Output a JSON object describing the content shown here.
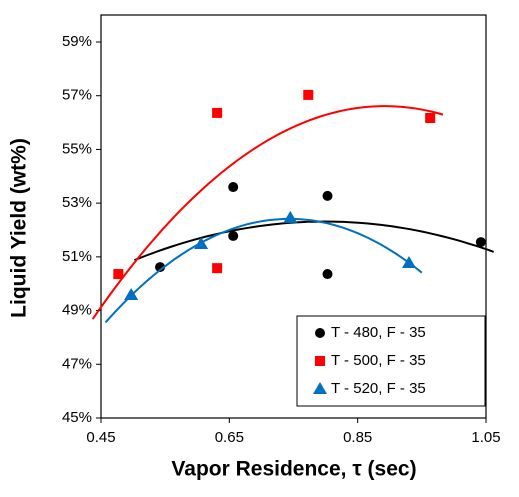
{
  "chart_data": {
    "type": "scatter",
    "xlabel": "Vapor Residence, τ (sec)",
    "ylabel": "Liquid Yield (wt%)",
    "xlim": [
      0.45,
      1.05
    ],
    "xticks": [
      0.45,
      0.65,
      0.85,
      1.05
    ],
    "ylim": [
      45,
      59
    ],
    "yticks": [
      {
        "value": 45,
        "label": "45%"
      },
      {
        "value": 47,
        "label": "47%"
      },
      {
        "value": 49,
        "label": "49%"
      },
      {
        "value": 51,
        "label": "51%"
      },
      {
        "value": 53,
        "label": "53%"
      },
      {
        "value": 55,
        "label": "55%"
      },
      {
        "value": 57,
        "label": "57%"
      },
      {
        "value": 59,
        "label": "59%"
      }
    ],
    "grid": false,
    "legend": "lower right",
    "trendline": "poly2",
    "series": [
      {
        "name": "T - 480, F - 35",
        "color": "#000000",
        "marker": "circle",
        "x": [
          0.542,
          0.656,
          0.656,
          0.803,
          0.803,
          1.042
        ],
        "values": [
          50.62,
          53.6,
          51.78,
          53.27,
          50.36,
          51.55
        ]
      },
      {
        "name": "T - 500, F - 35",
        "color": "#ff0000",
        "marker": "square",
        "x": [
          0.477,
          0.631,
          0.631,
          0.773,
          0.963
        ],
        "values": [
          50.36,
          56.36,
          50.58,
          57.03,
          56.17
        ]
      },
      {
        "name": "T - 520, F - 35",
        "color": "#0070c0",
        "marker": "triangle",
        "x": [
          0.497,
          0.606,
          0.745,
          0.93
        ],
        "values": [
          49.58,
          51.48,
          52.45,
          50.77
        ]
      }
    ]
  }
}
